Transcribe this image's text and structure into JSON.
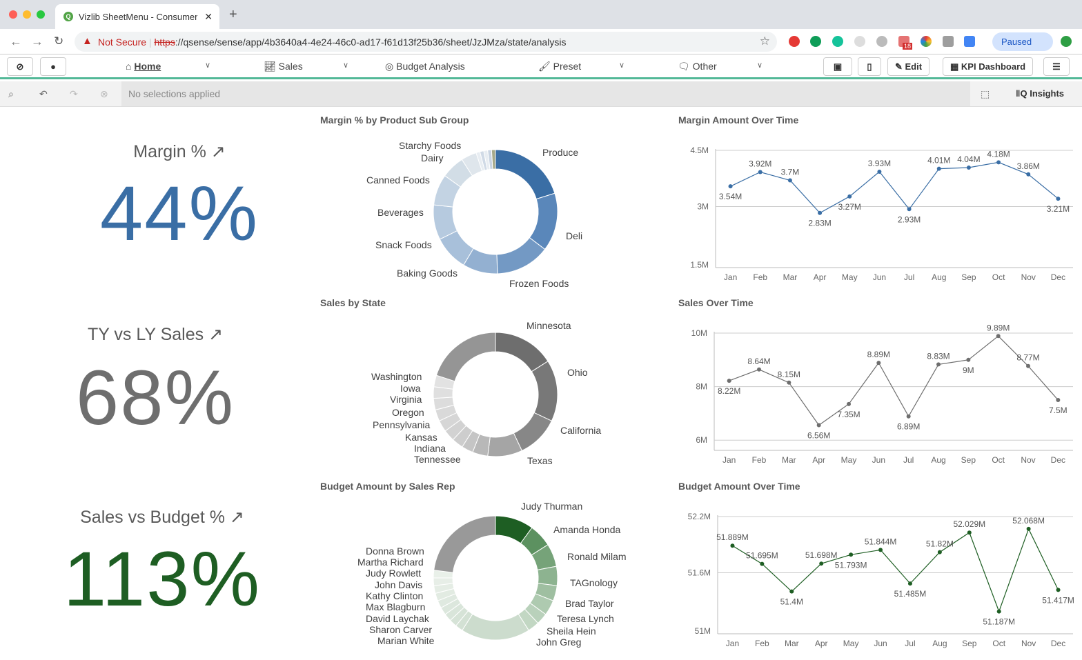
{
  "browser": {
    "tab_title": "Vizlib SheetMenu - Consumer Sales",
    "not_secure": "Not Secure",
    "url_scheme": "https",
    "url_rest": "://qsense/sense/app/4b3640a4-4e24-46c0-ad17-f61d13f25b36/sheet/JzJMza/state/analysis",
    "paused": "Paused",
    "badge_count": "18"
  },
  "menu": {
    "home": "Home",
    "sales": "Sales",
    "budget": "Budget Analysis",
    "preset": "Preset",
    "other": "Other",
    "edit": "Edit",
    "kpi_dashboard": "KPI Dashboard"
  },
  "selections": {
    "status": "No selections applied",
    "insights": "Insights"
  },
  "kpis": [
    {
      "title": "Margin %",
      "value": "44%",
      "color": "#3a6ea5"
    },
    {
      "title": "TY vs LY Sales",
      "value": "68%",
      "color": "#6e6e6e"
    },
    {
      "title": "Sales vs Budget %",
      "value": "113%",
      "color": "#1e5e23"
    }
  ],
  "donuts": [
    {
      "title": "Margin % by Product Sub Group",
      "segments": [
        {
          "label": "Produce",
          "value": 20,
          "color": "#3a6ea5"
        },
        {
          "label": "Deli",
          "value": 15,
          "color": "#5a87ba"
        },
        {
          "label": "Frozen Foods",
          "value": 14,
          "color": "#7399c4"
        },
        {
          "label": "Baking Goods",
          "value": 9,
          "color": "#93b0d1"
        },
        {
          "label": "Snack Foods",
          "value": 9,
          "color": "#a8c0da"
        },
        {
          "label": "Beverages",
          "value": 9,
          "color": "#b6cadf"
        },
        {
          "label": "Canned Foods",
          "value": 8,
          "color": "#c3d3e3"
        },
        {
          "label": "Dairy",
          "value": 6,
          "color": "#d2dde6"
        },
        {
          "label": "Starchy Foods",
          "value": 4,
          "color": "#dfe6ec"
        },
        {
          "label": null,
          "value": 1,
          "color": "#e8edf2"
        },
        {
          "label": null,
          "value": 1,
          "color": "#d0dae6"
        },
        {
          "label": null,
          "value": 1,
          "color": "#e8edf2"
        },
        {
          "label": null,
          "value": 1,
          "color": "#c9d4e2"
        },
        {
          "label": null,
          "value": 1,
          "color": "#a6a98a"
        }
      ]
    },
    {
      "title": "Sales by State",
      "segments": [
        {
          "label": "Minnesota",
          "value": 16,
          "color": "#6e6e6e"
        },
        {
          "label": "Ohio",
          "value": 16,
          "color": "#787878"
        },
        {
          "label": "California",
          "value": 11,
          "color": "#878787"
        },
        {
          "label": "Texas",
          "value": 9,
          "color": "#a5a5a5"
        },
        {
          "label": null,
          "value": 4,
          "color": "#b8b8b8"
        },
        {
          "label": "Tennessee",
          "value": 3,
          "color": "#c5c5c5"
        },
        {
          "label": "Indiana",
          "value": 3,
          "color": "#cdcdcd"
        },
        {
          "label": "Kansas",
          "value": 3,
          "color": "#d2d2d2"
        },
        {
          "label": "Pennsylvania",
          "value": 3,
          "color": "#d6d6d6"
        },
        {
          "label": "Oregon",
          "value": 3,
          "color": "#d9d9d9"
        },
        {
          "label": "Virginia",
          "value": 3,
          "color": "#dcdcdc"
        },
        {
          "label": "Iowa",
          "value": 3,
          "color": "#dfdfdf"
        },
        {
          "label": "Washington",
          "value": 3,
          "color": "#e2e2e2"
        },
        {
          "label": null,
          "value": 20,
          "color": "#959595"
        }
      ]
    },
    {
      "title": "Budget Amount by Sales Rep",
      "segments": [
        {
          "label": "Judy Thurman",
          "value": 10,
          "color": "#1e5e23"
        },
        {
          "label": "Amanda Honda",
          "value": 6,
          "color": "#5c9160"
        },
        {
          "label": "Ronald Milam",
          "value": 6,
          "color": "#76a379"
        },
        {
          "label": "TAGnology",
          "value": 5,
          "color": "#8db390"
        },
        {
          "label": "Brad Taylor",
          "value": 4,
          "color": "#9fbfa1"
        },
        {
          "label": "Teresa Lynch",
          "value": 4,
          "color": "#aecab0"
        },
        {
          "label": "Sheila Hein",
          "value": 3,
          "color": "#b9d1bb"
        },
        {
          "label": "John Greg",
          "value": 3,
          "color": "#c2d7c3"
        },
        {
          "label": null,
          "value": 18,
          "color": "#ccdccd"
        },
        {
          "label": "Marian White",
          "value": 2,
          "color": "#d3e1d4"
        },
        {
          "label": "Sharon Carver",
          "value": 2,
          "color": "#d6e3d7"
        },
        {
          "label": "David Laychak",
          "value": 2,
          "color": "#d9e5da"
        },
        {
          "label": "Max Blagburn",
          "value": 2,
          "color": "#dce7dd"
        },
        {
          "label": "Kathy Clinton",
          "value": 2,
          "color": "#dfe9e0"
        },
        {
          "label": "John Davis",
          "value": 2,
          "color": "#e2ebe2"
        },
        {
          "label": "Judy Rowlett",
          "value": 2,
          "color": "#e5ede5"
        },
        {
          "label": "Martha Richard",
          "value": 2,
          "color": "#e7eee7"
        },
        {
          "label": "Donna Brown",
          "value": 2,
          "color": "#e9f0e9"
        },
        {
          "label": null,
          "value": 23,
          "color": "#999999"
        }
      ]
    }
  ],
  "chart_data": [
    {
      "type": "line",
      "title": "Margin Amount Over Time",
      "color": "#3a6ea5",
      "grid": true,
      "categories": [
        "Jan",
        "Feb",
        "Mar",
        "Apr",
        "May",
        "Jun",
        "Jul",
        "Aug",
        "Sep",
        "Oct",
        "Nov",
        "Dec"
      ],
      "values": [
        3.54,
        3.92,
        3.7,
        2.83,
        3.27,
        3.93,
        2.93,
        4.01,
        4.04,
        4.18,
        3.86,
        3.21
      ],
      "labels": [
        "3.54M",
        "3.92M",
        "3.7M",
        "2.83M",
        "3.27M",
        "3.93M",
        "2.93M",
        "4.01M",
        "4.04M",
        "4.18M",
        "3.86M",
        "3.21M"
      ],
      "yticks": [
        "1.5M",
        "3M",
        "4.5M"
      ],
      "ytick_values": [
        1.5,
        3,
        4.5
      ],
      "ylim": [
        1.5,
        4.5
      ]
    },
    {
      "type": "line",
      "title": "Sales Over Time",
      "color": "#6e6e6e",
      "grid": true,
      "categories": [
        "Jan",
        "Feb",
        "Mar",
        "Apr",
        "May",
        "Jun",
        "Jul",
        "Aug",
        "Sep",
        "Oct",
        "Nov",
        "Dec"
      ],
      "values": [
        8.22,
        8.64,
        8.15,
        6.56,
        7.35,
        8.89,
        6.89,
        8.83,
        9.0,
        9.89,
        8.77,
        7.5
      ],
      "labels": [
        "8.22M",
        "8.64M",
        "8.15M",
        "6.56M",
        "7.35M",
        "8.89M",
        "6.89M",
        "8.83M",
        "9M",
        "9.89M",
        "8.77M",
        "7.5M"
      ],
      "yticks": [
        "6M",
        "8M",
        "10M"
      ],
      "ytick_values": [
        6,
        8,
        10
      ],
      "ylim": [
        5.8,
        10
      ]
    },
    {
      "type": "line",
      "title": "Budget Amount Over Time",
      "color": "#1e5e23",
      "grid": true,
      "categories": [
        "Jan",
        "Feb",
        "Mar",
        "Apr",
        "May",
        "Jun",
        "Jul",
        "Aug",
        "Sep",
        "Oct",
        "Nov",
        "Dec"
      ],
      "values": [
        51.889,
        51.695,
        51.4,
        51.698,
        51.793,
        51.844,
        51.485,
        51.82,
        52.029,
        51.187,
        52.068,
        51.417
      ],
      "labels": [
        "51.889M",
        "51.695M",
        "51.4M",
        "51.698M",
        "51.793M",
        "51.844M",
        "51.485M",
        "51.82M",
        "52.029M",
        "51.187M",
        "52.068M",
        "51.417M"
      ],
      "yticks": [
        "51M",
        "51.6M",
        "52.2M"
      ],
      "ytick_values": [
        51,
        51.6,
        52.2
      ],
      "ylim": [
        51,
        52.2
      ]
    }
  ]
}
